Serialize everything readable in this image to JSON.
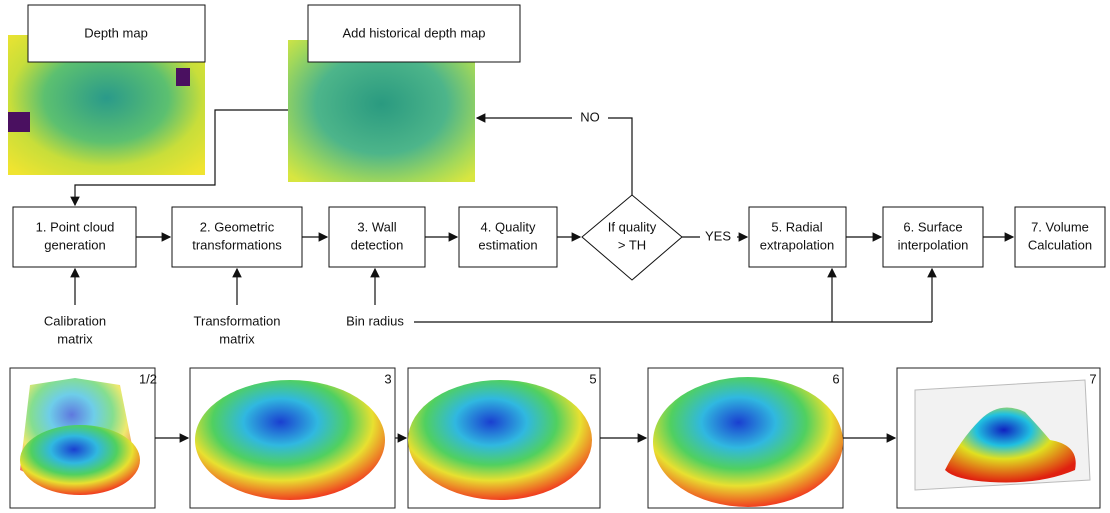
{
  "top_images": [
    {
      "label": "Depth map"
    },
    {
      "label": "Add historical depth map"
    }
  ],
  "nodes": [
    {
      "lines": [
        "1. Point cloud",
        "generation"
      ]
    },
    {
      "lines": [
        "2. Geometric",
        "transformations"
      ]
    },
    {
      "lines": [
        "3. Wall",
        "detection"
      ]
    },
    {
      "lines": [
        "4. Quality",
        "estimation"
      ]
    },
    {
      "lines": [
        "If quality",
        "> TH"
      ]
    },
    {
      "lines": [
        "5. Radial",
        "extrapolation"
      ]
    },
    {
      "lines": [
        "6. Surface",
        "interpolation"
      ]
    },
    {
      "lines": [
        "7. Volume",
        "Calculation"
      ]
    }
  ],
  "edge_labels": {
    "yes": "YES",
    "no": "NO"
  },
  "inputs": [
    {
      "lines": [
        "Calibration",
        "matrix"
      ]
    },
    {
      "lines": [
        "Transformation",
        "matrix"
      ]
    },
    {
      "lines": [
        "Bin radius"
      ]
    }
  ],
  "panels": [
    {
      "label": "1/2"
    },
    {
      "label": "3"
    },
    {
      "label": "5"
    },
    {
      "label": "6"
    },
    {
      "label": "7"
    }
  ]
}
